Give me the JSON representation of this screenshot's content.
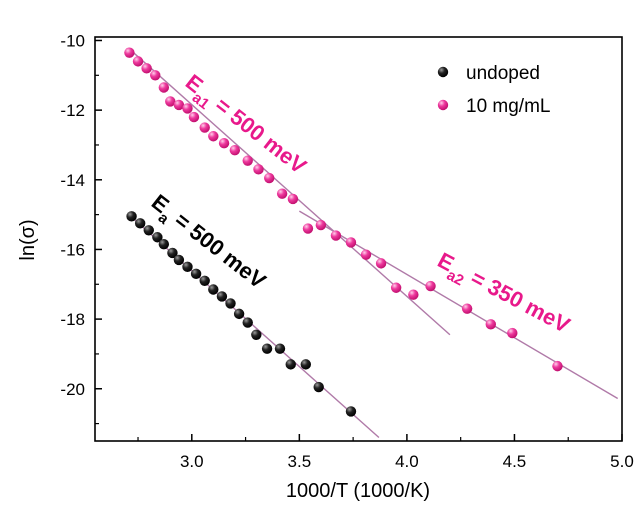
{
  "chart_data": {
    "type": "scatter",
    "xlabel": "1000/T (1000/K)",
    "ylabel": "ln(σ)",
    "xlim": [
      2.55,
      5.0
    ],
    "ylim": [
      -21.5,
      -9.9
    ],
    "xticks": [
      3.0,
      3.5,
      4.0,
      4.5,
      5.0
    ],
    "xtick_labels": [
      "3.0",
      "3.5",
      "4.0",
      "4.5",
      "5.0"
    ],
    "yticks": [
      -10,
      -12,
      -14,
      -16,
      -18,
      -20
    ],
    "ytick_labels": [
      "-10",
      "-12",
      "-14",
      "-16",
      "-18",
      "-20"
    ],
    "grid": false,
    "legend_position": "top-right",
    "series": [
      {
        "name": "undoped",
        "color": "#000000",
        "x": [
          2.72,
          2.76,
          2.8,
          2.84,
          2.87,
          2.91,
          2.94,
          2.98,
          3.02,
          3.06,
          3.1,
          3.14,
          3.18,
          3.22,
          3.26,
          3.3,
          3.35,
          3.41,
          3.46,
          3.53,
          3.59,
          3.74
        ],
        "y": [
          -15.05,
          -15.25,
          -15.45,
          -15.65,
          -15.85,
          -16.1,
          -16.3,
          -16.5,
          -16.7,
          -16.9,
          -17.15,
          -17.35,
          -17.55,
          -17.85,
          -18.1,
          -18.45,
          -18.85,
          -18.85,
          -19.3,
          -19.3,
          -19.95,
          -20.65
        ]
      },
      {
        "name": "10 mg/mL",
        "color": "#e8198b",
        "x": [
          2.71,
          2.75,
          2.79,
          2.83,
          2.87,
          2.9,
          2.94,
          2.98,
          3.01,
          3.06,
          3.1,
          3.15,
          3.2,
          3.26,
          3.31,
          3.36,
          3.42,
          3.47,
          3.54,
          3.6,
          3.67,
          3.74,
          3.81,
          3.88,
          3.95,
          4.03,
          4.11,
          4.28,
          4.39,
          4.49,
          4.7
        ],
        "y": [
          -10.35,
          -10.6,
          -10.8,
          -11.0,
          -11.35,
          -11.75,
          -11.85,
          -11.95,
          -12.2,
          -12.5,
          -12.75,
          -12.95,
          -13.15,
          -13.45,
          -13.7,
          -13.95,
          -14.4,
          -14.55,
          -15.4,
          -15.3,
          -15.6,
          -15.8,
          -16.15,
          -16.4,
          -17.1,
          -17.3,
          -17.05,
          -17.7,
          -18.15,
          -18.4,
          -19.35
        ]
      }
    ],
    "fit_lines": [
      {
        "series": "undoped",
        "x": [
          2.72,
          3.87
        ],
        "y": [
          -15.07,
          -21.4
        ]
      },
      {
        "series": "10 mg/mL",
        "x": [
          2.72,
          4.2
        ],
        "y": [
          -10.3,
          -18.45
        ]
      },
      {
        "series": "10 mg/mL",
        "x": [
          3.5,
          4.98
        ],
        "y": [
          -14.9,
          -20.28
        ]
      }
    ],
    "annotations": [
      {
        "main": "E",
        "sub": "a",
        "rest": " = 500 meV",
        "color": "#000000"
      },
      {
        "main": "E",
        "sub": "a1",
        "rest": " = 500 meV",
        "color": "#e8198b"
      },
      {
        "main": "E",
        "sub": "a2",
        "rest": " = 350 meV",
        "color": "#e8198b"
      }
    ]
  }
}
